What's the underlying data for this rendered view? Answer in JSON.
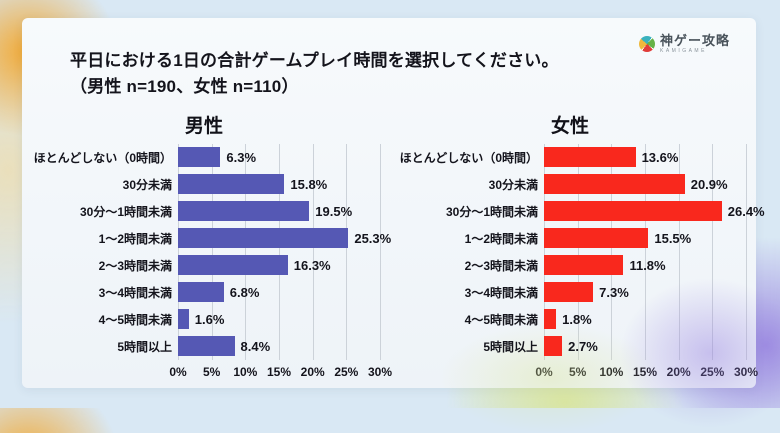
{
  "page": {
    "title_line1": "平日における1日の合計ゲームプレイ時間を選択してください。",
    "title_line2": "（男性 n=190、女性 n=110）"
  },
  "logo": {
    "name": "神ゲー攻略",
    "subtext": "KAMIGAME",
    "icon": "kamigame-pinwheel-icon"
  },
  "chart_data": {
    "type": "bar",
    "orientation": "horizontal",
    "title": "平日における1日の合計ゲームプレイ時間を選択してください。（男性 n=190、女性 n=110）",
    "categories": [
      "ほとんどしない（0時間）",
      "30分未満",
      "30分～1時間未満",
      "1～2時間未満",
      "2～3時間未満",
      "3～4時間未満",
      "4～5時間未満",
      "5時間以上"
    ],
    "series": [
      {
        "name": "男性",
        "n": 190,
        "color": "#5558b4",
        "values": [
          6.3,
          15.8,
          19.5,
          25.3,
          16.3,
          6.8,
          1.6,
          8.4
        ]
      },
      {
        "name": "女性",
        "n": 110,
        "color": "#f9281d",
        "values": [
          13.6,
          20.9,
          26.4,
          15.5,
          11.8,
          7.3,
          1.8,
          2.7
        ]
      }
    ],
    "value_suffix": "%",
    "xlim": [
      0,
      30
    ],
    "x_ticks": [
      "0%",
      "5%",
      "10%",
      "15%",
      "20%",
      "25%",
      "30%"
    ],
    "grid": true,
    "gridline_color": "#ccd2d9",
    "legend": "none"
  }
}
